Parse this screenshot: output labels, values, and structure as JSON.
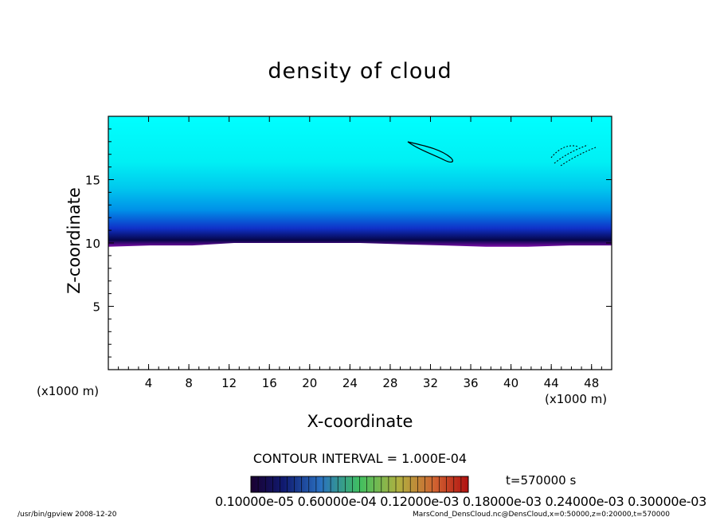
{
  "chart_data": {
    "type": "heatmap",
    "title": "density of cloud",
    "xlabel": "X-coordinate",
    "ylabel": "Z-coordinate",
    "x_unit": "(x1000 m)",
    "y_unit": "(x1000 m)",
    "xlim": [
      0,
      50
    ],
    "ylim": [
      0,
      20
    ],
    "x_ticks": [
      "4",
      "8",
      "12",
      "16",
      "20",
      "24",
      "28",
      "32",
      "36",
      "40",
      "44",
      "48"
    ],
    "y_ticks": [
      "5",
      "10",
      "15"
    ],
    "colorbar_labels": "0.10000e-05 0.60000e-04 0.12000e-03 0.18000e-03 0.24000e-03 0.30000e-03",
    "contour_interval": "CONTOUR INTERVAL = 1.000E-04",
    "time": "t=570000 s",
    "cloud_base_km": [
      9.7,
      9.8,
      9.8,
      10.0,
      10.0,
      10.0,
      10.0,
      9.9,
      9.8,
      9.7,
      9.7,
      9.8,
      9.8
    ],
    "cloud_top_km": 20
  },
  "footer": {
    "left": "/usr/bin/gpview  2008-12-20",
    "right": "MarsCond_DensCloud.nc@DensCloud,x=0:50000,z=0:20000,t=570000"
  }
}
